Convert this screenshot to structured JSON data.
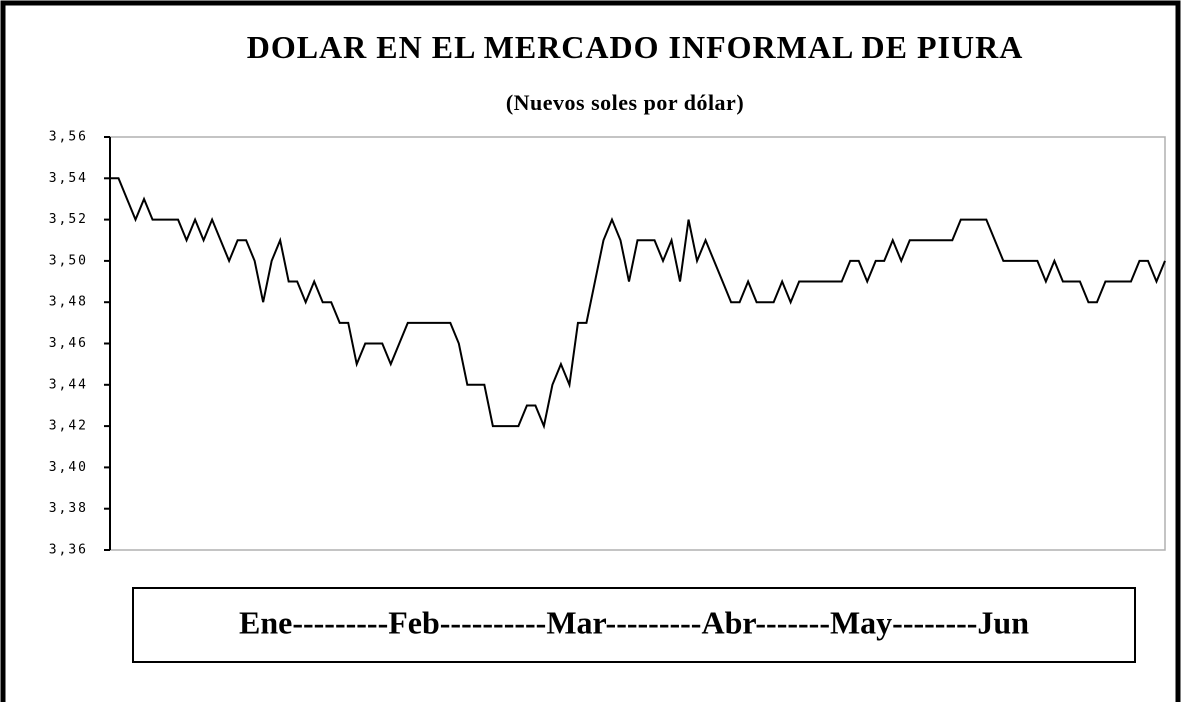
{
  "chart_data": {
    "type": "line",
    "title": "DOLAR EN EL MERCADO INFORMAL DE PIURA",
    "subtitle": "(Nuevos soles por dólar)",
    "x_label": "Ene---------Feb----------Mar---------Abr-------May--------Jun",
    "color": "#000000",
    "grid": false,
    "ylim": [
      3.36,
      3.56
    ],
    "yticks": [
      {
        "value": 3.36,
        "label": "3,36"
      },
      {
        "value": 3.38,
        "label": "3,38"
      },
      {
        "value": 3.4,
        "label": "3,40"
      },
      {
        "value": 3.42,
        "label": "3,42"
      },
      {
        "value": 3.44,
        "label": "3,44"
      },
      {
        "value": 3.46,
        "label": "3,46"
      },
      {
        "value": 3.48,
        "label": "3,48"
      },
      {
        "value": 3.5,
        "label": "3,50"
      },
      {
        "value": 3.52,
        "label": "3,52"
      },
      {
        "value": 3.54,
        "label": "3,54"
      },
      {
        "value": 3.56,
        "label": "3,56"
      }
    ],
    "values": [
      3.54,
      3.54,
      3.53,
      3.52,
      3.53,
      3.52,
      3.52,
      3.52,
      3.52,
      3.51,
      3.52,
      3.51,
      3.52,
      3.51,
      3.5,
      3.51,
      3.51,
      3.5,
      3.48,
      3.5,
      3.51,
      3.49,
      3.49,
      3.48,
      3.49,
      3.48,
      3.48,
      3.47,
      3.47,
      3.45,
      3.46,
      3.46,
      3.46,
      3.45,
      3.46,
      3.47,
      3.47,
      3.47,
      3.47,
      3.47,
      3.47,
      3.46,
      3.44,
      3.44,
      3.44,
      3.42,
      3.42,
      3.42,
      3.42,
      3.43,
      3.43,
      3.42,
      3.44,
      3.45,
      3.44,
      3.47,
      3.47,
      3.49,
      3.51,
      3.52,
      3.51,
      3.49,
      3.51,
      3.51,
      3.51,
      3.5,
      3.51,
      3.49,
      3.52,
      3.5,
      3.51,
      3.5,
      3.49,
      3.48,
      3.48,
      3.49,
      3.48,
      3.48,
      3.48,
      3.49,
      3.48,
      3.49,
      3.49,
      3.49,
      3.49,
      3.49,
      3.49,
      3.5,
      3.5,
      3.49,
      3.5,
      3.5,
      3.51,
      3.5,
      3.51,
      3.51,
      3.51,
      3.51,
      3.51,
      3.51,
      3.52,
      3.52,
      3.52,
      3.52,
      3.51,
      3.5,
      3.5,
      3.5,
      3.5,
      3.5,
      3.49,
      3.5,
      3.49,
      3.49,
      3.49,
      3.48,
      3.48,
      3.49,
      3.49,
      3.49,
      3.49,
      3.5,
      3.5,
      3.49,
      3.5
    ]
  }
}
